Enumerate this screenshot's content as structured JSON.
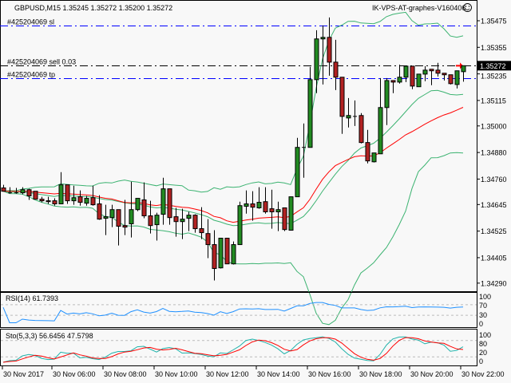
{
  "header": {
    "symbol_info": "GBPUSD,M15  1.35245 1.35272 1.35200 1.35272",
    "expert_label": "IK-VPS-AT-graphes-V160406",
    "expert_icon": "smiley-face-icon"
  },
  "orders": [
    {
      "label": "#425204069 sl",
      "price": 1.35454,
      "color": "#0000ff"
    },
    {
      "label": "#425204069 sell 0.03",
      "price": 1.35272,
      "color": "#000000"
    },
    {
      "label": "#425204069 tp",
      "price": 1.35216,
      "color": "#0000ff"
    }
  ],
  "current_price": "1.35272",
  "colors": {
    "background": "#f8f8f8",
    "bull_candle": "#228b22",
    "bear_candle": "#b22222",
    "bands": "#3cb371",
    "moving_average": "#ff0000",
    "rsi": "#1e90ff",
    "stoch_main": "#20b2aa",
    "stoch_signal": "#ff0000"
  },
  "chart_data": [
    {
      "type": "candlestick",
      "symbol": "GBPUSD",
      "timeframe": "M15",
      "ylim": [
        1.3427,
        1.3557
      ],
      "y_ticks": [
        "1.35475",
        "1.35355",
        "1.35235",
        "1.35115",
        "1.35000",
        "1.34880",
        "1.34760",
        "1.34645",
        "1.34525",
        "1.34405",
        "1.34290"
      ],
      "x_ticks": [
        "30 Nov 2017",
        "30 Nov 06:00",
        "30 Nov 08:00",
        "30 Nov 10:00",
        "30 Nov 12:00",
        "30 Nov 14:00",
        "30 Nov 16:00",
        "30 Nov 18:00",
        "30 Nov 20:00",
        "30 Nov 22:00"
      ],
      "ohlc": [
        [
          1.3472,
          1.34734,
          1.34705,
          1.34705
        ],
        [
          1.34698,
          1.34723,
          1.34694,
          1.34698
        ],
        [
          1.34698,
          1.3472,
          1.34694,
          1.34698
        ],
        [
          1.34698,
          1.34723,
          1.34691,
          1.34712
        ],
        [
          1.34712,
          1.34716,
          1.34666,
          1.34684
        ],
        [
          1.34705,
          1.34705,
          1.34669,
          1.34669
        ],
        [
          1.34669,
          1.3468,
          1.34655,
          1.34662
        ],
        [
          1.34662,
          1.3468,
          1.34648,
          1.34658
        ],
        [
          1.34662,
          1.34673,
          1.3464,
          1.34648
        ],
        [
          1.34648,
          1.34791,
          1.34648,
          1.34734
        ],
        [
          1.34734,
          1.34734,
          1.34648,
          1.34662
        ],
        [
          1.34662,
          1.3473,
          1.34644,
          1.34676
        ],
        [
          1.3468,
          1.34709,
          1.3464,
          1.34655
        ],
        [
          1.34651,
          1.34684,
          1.3464,
          1.34673
        ],
        [
          1.34676,
          1.3473,
          1.3464,
          1.34644
        ],
        [
          1.34648,
          1.34687,
          1.34576,
          1.34579
        ],
        [
          1.34583,
          1.34644,
          1.34507,
          1.3459
        ],
        [
          1.34586,
          1.34644,
          1.34543,
          1.34622
        ],
        [
          1.34622,
          1.34622,
          1.3446,
          1.34547
        ],
        [
          1.3455,
          1.34666,
          1.34507,
          1.34543
        ],
        [
          1.34558,
          1.34748,
          1.34496,
          1.34622
        ],
        [
          1.34622,
          1.34673,
          1.34615,
          1.34673
        ],
        [
          1.34666,
          1.34745,
          1.34583,
          1.34594
        ],
        [
          1.34594,
          1.34662,
          1.34514,
          1.3455
        ],
        [
          1.34554,
          1.34608,
          1.34482,
          1.34597
        ],
        [
          1.34601,
          1.34766,
          1.34554,
          1.34716
        ],
        [
          1.34716,
          1.34716,
          1.34554,
          1.34586
        ],
        [
          1.3459,
          1.3463,
          1.345,
          1.34568
        ],
        [
          1.34568,
          1.34626,
          1.34489,
          1.34579
        ],
        [
          1.34583,
          1.34612,
          1.34525,
          1.34597
        ],
        [
          1.34597,
          1.34601,
          1.34518,
          1.34536
        ],
        [
          1.34536,
          1.34633,
          1.34489,
          1.34518
        ],
        [
          1.34514,
          1.34579,
          1.34403,
          1.34464
        ],
        [
          1.34464,
          1.34529,
          1.34302,
          1.34356
        ],
        [
          1.34359,
          1.34493,
          1.34356,
          1.34493
        ],
        [
          1.34493,
          1.34493,
          1.34377,
          1.34377
        ],
        [
          1.34377,
          1.34478,
          1.34374,
          1.34464
        ],
        [
          1.34464,
          1.34658,
          1.34464,
          1.3464
        ],
        [
          1.34637,
          1.34709,
          1.34604,
          1.34648
        ],
        [
          1.34648,
          1.34705,
          1.34572,
          1.34633
        ],
        [
          1.3463,
          1.34723,
          1.34626,
          1.34655
        ],
        [
          1.34658,
          1.34723,
          1.34604,
          1.34612
        ],
        [
          1.34626,
          1.34712,
          1.34536,
          1.34612
        ],
        [
          1.34612,
          1.34658,
          1.34525,
          1.34622
        ],
        [
          1.3463,
          1.3463,
          1.34525,
          1.34532
        ],
        [
          1.34529,
          1.3468,
          1.34529,
          1.3468
        ],
        [
          1.3468,
          1.34946,
          1.3468,
          1.34903
        ],
        [
          1.34903,
          1.35011,
          1.34766,
          1.34903
        ],
        [
          1.34903,
          1.35267,
          1.34903,
          1.35209
        ],
        [
          1.35209,
          1.35432,
          1.35148,
          1.35393
        ],
        [
          1.35393,
          1.35454,
          1.35187,
          1.354
        ],
        [
          1.354,
          1.3549,
          1.35227,
          1.35288
        ],
        [
          1.35288,
          1.35389,
          1.35162,
          1.3522
        ],
        [
          1.3522,
          1.3522,
          1.34964,
          1.35043
        ],
        [
          1.35036,
          1.35126,
          1.34993,
          1.35047
        ],
        [
          1.35043,
          1.35115,
          1.35,
          1.35043
        ],
        [
          1.35047,
          1.35058,
          1.34921,
          1.34925
        ],
        [
          1.34925,
          1.34982,
          1.34831,
          1.34842
        ],
        [
          1.34838,
          1.34878,
          1.34835,
          1.34878
        ],
        [
          1.34874,
          1.35216,
          1.34874,
          1.35083
        ],
        [
          1.35083,
          1.35216,
          1.35004,
          1.35205
        ],
        [
          1.35205,
          1.35205,
          1.35148,
          1.35198
        ],
        [
          1.35198,
          1.35277,
          1.35191,
          1.3522
        ],
        [
          1.3522,
          1.3527,
          1.35198,
          1.3527
        ],
        [
          1.3527,
          1.3527,
          1.35166,
          1.3518
        ],
        [
          1.35177,
          1.35234,
          1.35177,
          1.35234
        ],
        [
          1.35234,
          1.3527,
          1.35202,
          1.35252
        ],
        [
          1.35256,
          1.35256,
          1.35184,
          1.35249
        ],
        [
          1.35252,
          1.35285,
          1.35223,
          1.35238
        ],
        [
          1.35238,
          1.35238,
          1.35205,
          1.35231
        ],
        [
          1.35231,
          1.35231,
          1.35187,
          1.35191
        ],
        [
          1.35187,
          1.35249,
          1.35169,
          1.35249
        ],
        [
          1.35245,
          1.35272,
          1.352,
          1.35272
        ]
      ]
    },
    {
      "type": "line",
      "title": "RSI(14) 61.7393",
      "ylim": [
        0,
        100
      ],
      "y_ticks": [
        "100",
        "70",
        "30",
        "0"
      ],
      "levels": [
        70,
        30
      ]
    },
    {
      "type": "line",
      "title": "Sto(5,3,3) 56.6456 47.5798",
      "ylim": [
        0,
        100
      ],
      "y_ticks": [
        "100",
        "80",
        "20",
        "0"
      ],
      "levels": [
        80,
        20
      ]
    }
  ]
}
